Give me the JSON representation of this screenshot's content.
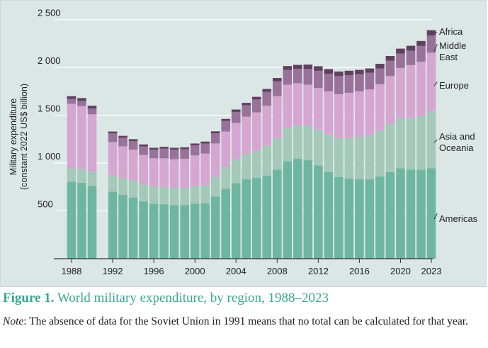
{
  "chart_data": {
    "type": "bar",
    "stacked": true,
    "ylabel": "Military expenditure\n(constant 2022 US$ billion)",
    "ylim": [
      0,
      2550
    ],
    "yticks": [
      500,
      1000,
      1500,
      2000,
      2500
    ],
    "ytick_labels": [
      "500",
      "1 000",
      "1 500",
      "2 000",
      "2 500"
    ],
    "xtick_labels": [
      "1988",
      "1992",
      "1996",
      "2000",
      "2004",
      "2008",
      "2012",
      "2016",
      "2020",
      "2023"
    ],
    "grid": true,
    "legend": "right, inline labels",
    "years": [
      1988,
      1989,
      1990,
      1991,
      1992,
      1993,
      1994,
      1995,
      1996,
      1997,
      1998,
      1999,
      2000,
      2001,
      2002,
      2003,
      2004,
      2005,
      2006,
      2007,
      2008,
      2009,
      2010,
      2011,
      2012,
      2013,
      2014,
      2015,
      2016,
      2017,
      2018,
      2019,
      2020,
      2021,
      2022,
      2023
    ],
    "series": [
      {
        "name": "Americas",
        "color": "#6fb6a0",
        "values": [
          805,
          795,
          760,
          null,
          700,
          670,
          640,
          600,
          575,
          570,
          560,
          560,
          575,
          580,
          650,
          730,
          790,
          830,
          845,
          870,
          930,
          1020,
          1045,
          1030,
          975,
          905,
          855,
          840,
          835,
          830,
          860,
          905,
          945,
          930,
          930,
          945
        ]
      },
      {
        "name": "Asia and Oceania",
        "color": "#a5c9b9",
        "values": [
          140,
          145,
          150,
          null,
          170,
          175,
          180,
          175,
          175,
          180,
          180,
          180,
          185,
          190,
          205,
          230,
          250,
          265,
          285,
          310,
          330,
          345,
          350,
          360,
          375,
          395,
          405,
          425,
          440,
          460,
          480,
          505,
          525,
          545,
          560,
          600
        ]
      },
      {
        "name": "Europe",
        "color": "#d6a6d3",
        "values": [
          675,
          655,
          600,
          null,
          350,
          330,
          320,
          310,
          300,
          300,
          300,
          305,
          320,
          330,
          350,
          370,
          380,
          390,
          400,
          420,
          440,
          455,
          440,
          430,
          435,
          450,
          460,
          470,
          475,
          480,
          485,
          500,
          525,
          550,
          570,
          610
        ]
      },
      {
        "name": "Middle East",
        "color": "#98729a",
        "values": [
          50,
          55,
          60,
          null,
          90,
          90,
          90,
          90,
          90,
          100,
          100,
          100,
          105,
          105,
          105,
          110,
          115,
          120,
          135,
          145,
          155,
          155,
          150,
          165,
          180,
          185,
          190,
          185,
          180,
          175,
          165,
          160,
          150,
          150,
          165,
          180
        ]
      },
      {
        "name": "Africa",
        "color": "#60405f",
        "values": [
          30,
          30,
          30,
          null,
          20,
          20,
          20,
          20,
          20,
          20,
          20,
          20,
          20,
          20,
          22,
          22,
          25,
          25,
          28,
          30,
          35,
          40,
          42,
          45,
          48,
          48,
          48,
          46,
          45,
          45,
          48,
          50,
          52,
          52,
          52,
          55
        ]
      }
    ]
  },
  "caption": {
    "figure_label": "Figure 1.",
    "title": " World military expenditure, by region, 1988–2023"
  },
  "note": {
    "label": "Note",
    "text": ": The absence of data for the Soviet Union in 1991 means that no total can be calculated for that year."
  }
}
